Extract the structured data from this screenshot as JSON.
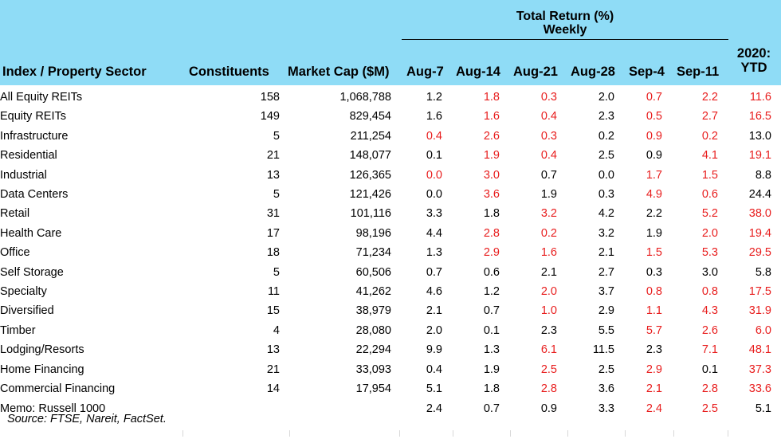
{
  "header": {
    "group_title_line1": "Total Return (%)",
    "group_title_line2": "Weekly",
    "columns": {
      "sector": "Index / Property Sector",
      "constituents": "Constituents",
      "market_cap": "Market Cap ($M)",
      "w1": "Aug-7",
      "w2": "Aug-14",
      "w3": "Aug-21",
      "w4": "Aug-28",
      "w5": "Sep-4",
      "w6": "Sep-11",
      "ytd_line1": "2020:",
      "ytd_line2": "YTD"
    }
  },
  "colors": {
    "header_bg": "#8fdcf6",
    "highlight_red": "#e81d1d"
  },
  "rows": [
    {
      "name": "All Equity REITs",
      "constituents": "158",
      "market_cap": "1,068,788",
      "returns": [
        "1.2",
        "1.8",
        "0.3",
        "2.0",
        "0.7",
        "2.2",
        "11.6"
      ],
      "red": [
        false,
        true,
        true,
        false,
        true,
        true,
        true
      ]
    },
    {
      "name": "Equity REITs",
      "constituents": "149",
      "market_cap": "829,454",
      "returns": [
        "1.6",
        "1.6",
        "0.4",
        "2.3",
        "0.5",
        "2.7",
        "16.5"
      ],
      "red": [
        false,
        true,
        true,
        false,
        true,
        true,
        true
      ]
    },
    {
      "name": "Infrastructure",
      "constituents": "5",
      "market_cap": "211,254",
      "returns": [
        "0.4",
        "2.6",
        "0.3",
        "0.2",
        "0.9",
        "0.2",
        "13.0"
      ],
      "red": [
        true,
        true,
        true,
        false,
        true,
        true,
        false
      ]
    },
    {
      "name": "Residential",
      "constituents": "21",
      "market_cap": "148,077",
      "returns": [
        "0.1",
        "1.9",
        "0.4",
        "2.5",
        "0.9",
        "4.1",
        "19.1"
      ],
      "red": [
        false,
        true,
        true,
        false,
        false,
        true,
        true
      ]
    },
    {
      "name": "Industrial",
      "constituents": "13",
      "market_cap": "126,365",
      "returns": [
        "0.0",
        "3.0",
        "0.7",
        "0.0",
        "1.7",
        "1.5",
        "8.8"
      ],
      "red": [
        true,
        true,
        false,
        false,
        true,
        true,
        false
      ]
    },
    {
      "name": "Data Centers",
      "constituents": "5",
      "market_cap": "121,426",
      "returns": [
        "0.0",
        "3.6",
        "1.9",
        "0.3",
        "4.9",
        "0.6",
        "24.4"
      ],
      "red": [
        false,
        true,
        false,
        false,
        true,
        true,
        false
      ]
    },
    {
      "name": "Retail",
      "constituents": "31",
      "market_cap": "101,116",
      "returns": [
        "3.3",
        "1.8",
        "3.2",
        "4.2",
        "2.2",
        "5.2",
        "38.0"
      ],
      "red": [
        false,
        false,
        true,
        false,
        false,
        true,
        true
      ]
    },
    {
      "name": "Health Care",
      "constituents": "17",
      "market_cap": "98,196",
      "returns": [
        "4.4",
        "2.8",
        "0.2",
        "3.2",
        "1.9",
        "2.0",
        "19.4"
      ],
      "red": [
        false,
        true,
        true,
        false,
        false,
        true,
        true
      ]
    },
    {
      "name": "Office",
      "constituents": "18",
      "market_cap": "71,234",
      "returns": [
        "1.3",
        "2.9",
        "1.6",
        "2.1",
        "1.5",
        "5.3",
        "29.5"
      ],
      "red": [
        false,
        true,
        true,
        false,
        true,
        true,
        true
      ]
    },
    {
      "name": "Self Storage",
      "constituents": "5",
      "market_cap": "60,506",
      "returns": [
        "0.7",
        "0.6",
        "2.1",
        "2.7",
        "0.3",
        "3.0",
        "5.8"
      ],
      "red": [
        false,
        false,
        false,
        false,
        false,
        false,
        false
      ]
    },
    {
      "name": "Specialty",
      "constituents": "11",
      "market_cap": "41,262",
      "returns": [
        "4.6",
        "1.2",
        "2.0",
        "3.7",
        "0.8",
        "0.8",
        "17.5"
      ],
      "red": [
        false,
        false,
        true,
        false,
        true,
        true,
        true
      ]
    },
    {
      "name": "Diversified",
      "constituents": "15",
      "market_cap": "38,979",
      "returns": [
        "2.1",
        "0.7",
        "1.0",
        "2.9",
        "1.1",
        "4.3",
        "31.9"
      ],
      "red": [
        false,
        false,
        true,
        false,
        true,
        true,
        true
      ]
    },
    {
      "name": "Timber",
      "constituents": "4",
      "market_cap": "28,080",
      "returns": [
        "2.0",
        "0.1",
        "2.3",
        "5.5",
        "5.7",
        "2.6",
        "6.0"
      ],
      "red": [
        false,
        false,
        false,
        false,
        true,
        true,
        true
      ]
    },
    {
      "name": "Lodging/Resorts",
      "constituents": "13",
      "market_cap": "22,294",
      "returns": [
        "9.9",
        "1.3",
        "6.1",
        "11.5",
        "2.3",
        "7.1",
        "48.1"
      ],
      "red": [
        false,
        false,
        true,
        false,
        false,
        true,
        true
      ]
    },
    {
      "name": "Home Financing",
      "constituents": "21",
      "market_cap": "33,093",
      "returns": [
        "0.4",
        "1.9",
        "2.5",
        "2.5",
        "2.9",
        "0.1",
        "37.3"
      ],
      "red": [
        false,
        false,
        true,
        false,
        true,
        false,
        true
      ]
    },
    {
      "name": "Commercial Financing",
      "constituents": "14",
      "market_cap": "17,954",
      "returns": [
        "5.1",
        "1.8",
        "2.8",
        "3.6",
        "2.1",
        "2.8",
        "33.6"
      ],
      "red": [
        false,
        false,
        true,
        false,
        true,
        true,
        true
      ]
    },
    {
      "name": "Memo: Russell 1000",
      "constituents": "",
      "market_cap": "",
      "returns": [
        "2.4",
        "0.7",
        "0.9",
        "3.3",
        "2.4",
        "2.5",
        "5.1"
      ],
      "red": [
        false,
        false,
        false,
        false,
        true,
        true,
        false
      ]
    }
  ],
  "source": "Source: FTSE, Nareit, FactSet."
}
